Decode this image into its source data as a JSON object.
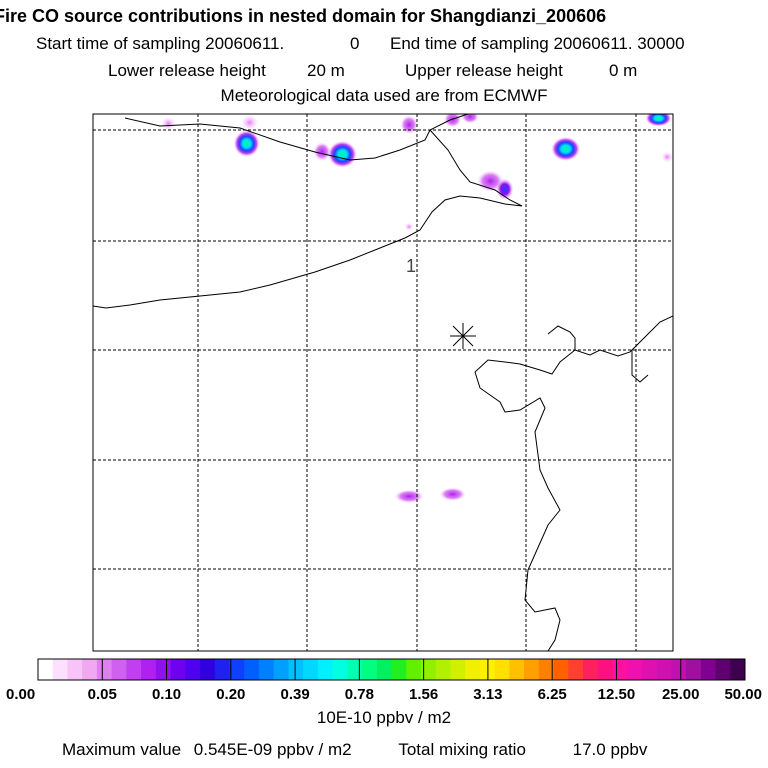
{
  "chart_data": {
    "type": "heatmap",
    "title": "Fire CO source contributions in nested domain for Shangdianzi_200606",
    "sampling": {
      "start_label": "Start time of sampling 20060611.",
      "start_value": "0",
      "end_label": "End time of sampling 20060611. 30000"
    },
    "release": {
      "lower_label": "Lower release height",
      "lower_value": "20 m",
      "upper_label": "Upper release height",
      "upper_value": "0 m"
    },
    "met_note": "Meteorological data used are from ECMWF",
    "map_annotation": "1",
    "colorbar": {
      "tick_labels": [
        "0.00",
        "0.05",
        "0.10",
        "0.20",
        "0.39",
        "0.78",
        "1.56",
        "3.13",
        "6.25",
        "12.50",
        "25.00",
        "50.00"
      ],
      "colors": [
        "#ffffff",
        "#fde0fd",
        "#f8c4f8",
        "#f0a8f0",
        "#e080f0",
        "#d060f0",
        "#c040f0",
        "#b020f0",
        "#9010f0",
        "#7000f0",
        "#5000f0",
        "#3000e0",
        "#2020f0",
        "#1040ff",
        "#0060ff",
        "#0080ff",
        "#00a0ff",
        "#00c0ff",
        "#00d8ff",
        "#00f0ff",
        "#00ffe0",
        "#00ffb0",
        "#00ff80",
        "#00f060",
        "#20f020",
        "#60f000",
        "#90f000",
        "#b0f000",
        "#d0f000",
        "#f0f000",
        "#fff000",
        "#ffe000",
        "#ffc000",
        "#ffa000",
        "#ff8000",
        "#ff6000",
        "#ff4030",
        "#ff2060",
        "#ff1080",
        "#ff10a0",
        "#f010b0",
        "#e010b0",
        "#d010b0",
        "#c010b0",
        "#a010a0",
        "#800090",
        "#600070",
        "#400050"
      ],
      "unit": "10E-10 ppbv / m2"
    },
    "footer": {
      "max_label": "Maximum value",
      "max_value": "0.545E-09 ppbv / m2",
      "total_label": "Total mixing ratio",
      "total_value": "17.0 ppbv"
    },
    "hotspots": [
      {
        "x": 0.27,
        "y": 0.016,
        "level": "light",
        "w": 0.03,
        "h": 0.03
      },
      {
        "x": 0.13,
        "y": 0.018,
        "level": "light",
        "w": 0.025,
        "h": 0.025
      },
      {
        "x": 0.545,
        "y": 0.02,
        "level": "mid",
        "w": 0.03,
        "h": 0.035
      },
      {
        "x": 0.62,
        "y": 0.01,
        "level": "mid",
        "w": 0.03,
        "h": 0.03
      },
      {
        "x": 0.65,
        "y": 0.005,
        "level": "mid",
        "w": 0.03,
        "h": 0.025
      },
      {
        "x": 0.975,
        "y": 0.008,
        "level": "high",
        "w": 0.045,
        "h": 0.03
      },
      {
        "x": 0.265,
        "y": 0.055,
        "level": "high",
        "w": 0.045,
        "h": 0.05
      },
      {
        "x": 0.395,
        "y": 0.07,
        "level": "mid",
        "w": 0.03,
        "h": 0.035
      },
      {
        "x": 0.43,
        "y": 0.075,
        "level": "high",
        "w": 0.05,
        "h": 0.05
      },
      {
        "x": 0.815,
        "y": 0.065,
        "level": "high",
        "w": 0.05,
        "h": 0.045
      },
      {
        "x": 0.99,
        "y": 0.08,
        "level": "light",
        "w": 0.02,
        "h": 0.02
      },
      {
        "x": 0.685,
        "y": 0.125,
        "level": "mid",
        "w": 0.045,
        "h": 0.04
      },
      {
        "x": 0.71,
        "y": 0.14,
        "level": "blue",
        "w": 0.03,
        "h": 0.04
      },
      {
        "x": 0.545,
        "y": 0.21,
        "level": "light",
        "w": 0.015,
        "h": 0.015
      },
      {
        "x": 0.545,
        "y": 0.712,
        "level": "mid",
        "w": 0.05,
        "h": 0.025
      },
      {
        "x": 0.62,
        "y": 0.708,
        "level": "mid",
        "w": 0.045,
        "h": 0.025
      }
    ]
  }
}
